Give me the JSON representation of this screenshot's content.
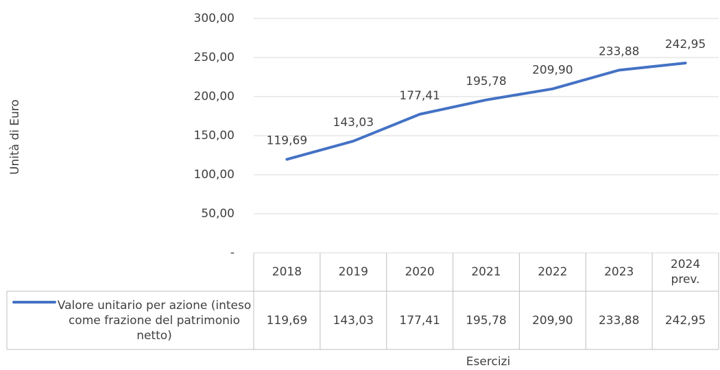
{
  "chart_data": {
    "type": "line",
    "y_label": "Unità di Euro",
    "x_label": "Esercizi",
    "categories": [
      "2018",
      "2019",
      "2020",
      "2021",
      "2022",
      "2023",
      "2024 prev."
    ],
    "series": [
      {
        "name": "Valore unitario per azione (inteso come frazione del patrimonio netto)",
        "color": "#4472c4",
        "values": [
          119.69,
          143.03,
          177.41,
          195.78,
          209.9,
          233.88,
          242.95
        ],
        "value_labels": [
          "119,69",
          "143,03",
          "177,41",
          "195,78",
          "209,90",
          "233,88",
          "242,95"
        ]
      }
    ],
    "ylim": [
      0,
      300
    ],
    "yticks": [
      {
        "value": 0,
        "label": "-"
      },
      {
        "value": 50,
        "label": "50,00"
      },
      {
        "value": 100,
        "label": "100,00"
      },
      {
        "value": 150,
        "label": "150,00"
      },
      {
        "value": 200,
        "label": "200,00"
      },
      {
        "value": 250,
        "label": "250,00"
      },
      {
        "value": 300,
        "label": "300,00"
      }
    ],
    "grid": true,
    "data_table": true
  }
}
